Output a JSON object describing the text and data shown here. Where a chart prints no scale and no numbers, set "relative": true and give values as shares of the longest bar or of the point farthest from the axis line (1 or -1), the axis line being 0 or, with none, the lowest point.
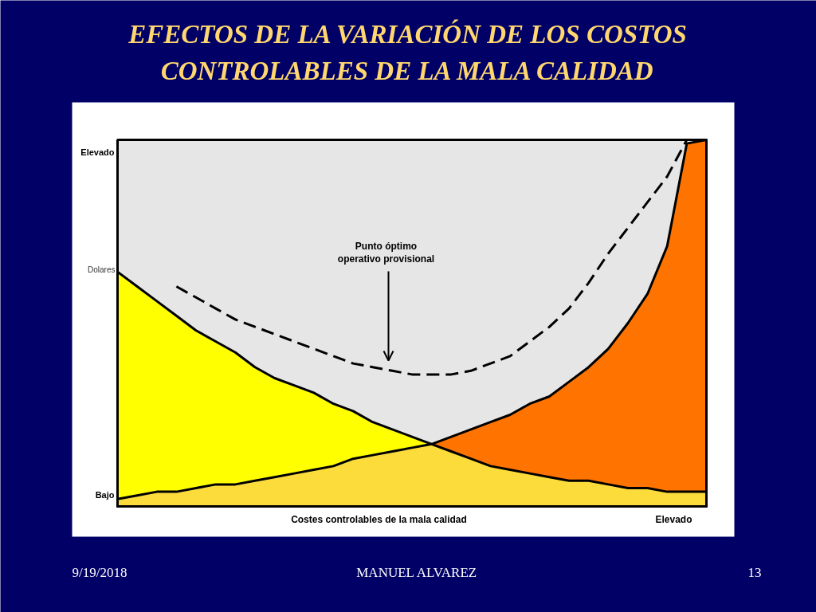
{
  "chart_data": {
    "type": "area",
    "title": "EFECTOS DE LA VARIACIÓN DE LOS COSTOS CONTROLABLES DE LA MALA CALIDAD",
    "xlabel": "Costes controlables de la mala calidad",
    "ylabel": "Dolares",
    "relative": true,
    "categories": [
      null,
      null,
      null,
      null,
      null,
      null,
      null,
      null,
      null,
      null,
      null,
      null,
      null,
      null,
      null,
      null,
      null,
      null,
      null,
      null,
      null,
      null,
      null,
      null,
      null,
      null,
      null,
      null,
      null,
      null,
      null
    ],
    "series": [
      {
        "color": "#ffff00",
        "values": [
          0.64,
          0.6,
          0.56,
          0.52,
          0.48,
          0.45,
          0.42,
          0.38,
          0.35,
          0.33,
          0.31,
          0.28,
          0.26,
          0.23,
          0.21,
          0.19,
          0.17,
          null,
          null,
          null,
          null,
          null,
          null,
          null,
          null,
          null,
          null,
          null,
          null,
          null,
          null
        ]
      },
      {
        "color": "#ff7300",
        "values": [
          null,
          null,
          null,
          null,
          null,
          null,
          null,
          null,
          null,
          null,
          null,
          null,
          null,
          null,
          null,
          null,
          0.17,
          0.19,
          0.21,
          0.23,
          0.25,
          0.28,
          0.3,
          0.34,
          0.38,
          0.43,
          0.5,
          0.58,
          0.71,
          0.99,
          1.0
        ]
      },
      {
        "color": "#fcdc3b",
        "values": [
          0.02,
          0.03,
          0.04,
          0.04,
          0.05,
          0.06,
          0.06,
          0.07,
          0.08,
          0.09,
          0.1,
          0.11,
          0.13,
          0.14,
          0.15,
          0.16,
          0.17,
          0.15,
          0.13,
          0.11,
          0.1,
          0.09,
          0.08,
          0.07,
          0.07,
          0.06,
          0.05,
          0.05,
          0.04,
          0.04,
          0.04
        ]
      },
      {
        "type": "line",
        "color": "#000000",
        "line_style": "dashed",
        "values": [
          null,
          null,
          null,
          0.6,
          0.57,
          0.54,
          0.51,
          0.49,
          0.47,
          0.45,
          0.43,
          0.41,
          0.39,
          0.38,
          0.37,
          0.36,
          0.36,
          0.36,
          0.37,
          0.39,
          0.41,
          0.45,
          0.49,
          0.54,
          0.61,
          0.69,
          0.76,
          0.83,
          0.9,
          1.0,
          null
        ]
      }
    ],
    "annotations": [
      "Elevado",
      "Bajo",
      "Elevado",
      "Punto óptimo operativo provisional",
      "9/19/2018",
      "MANUEL ALVAREZ",
      "13"
    ]
  }
}
